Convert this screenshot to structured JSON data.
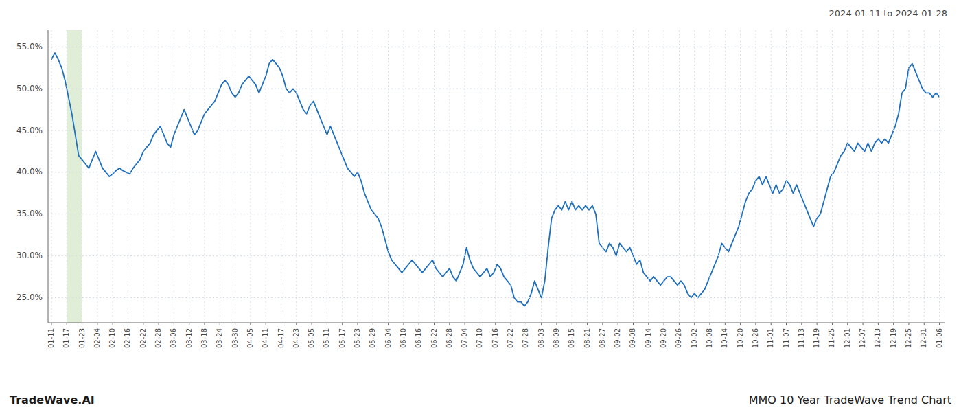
{
  "chart_data": {
    "type": "line",
    "title": "MMO 10 Year TradeWave Trend Chart",
    "subtitle": "2024-01-11 to 2024-01-28",
    "annotations": [
      "TradeWave.AI"
    ],
    "color": "#1f6fbf",
    "grid": true,
    "highlight": {
      "from": 4.5,
      "to": 9,
      "color": "#e0eed8"
    },
    "xlim": [
      -1,
      262.5
    ],
    "ylim": [
      22,
      57
    ],
    "yticks": [
      {
        "value": 25.0,
        "label": "25.0%"
      },
      {
        "value": 30.0,
        "label": "30.0%"
      },
      {
        "value": 35.0,
        "label": "35.0%"
      },
      {
        "value": 40.0,
        "label": "40.0%"
      },
      {
        "value": 45.0,
        "label": "45.0%"
      },
      {
        "value": 50.0,
        "label": "50.0%"
      },
      {
        "value": 55.0,
        "label": "55.0%"
      }
    ],
    "xticks": [
      {
        "value": 0,
        "label": "01-11"
      },
      {
        "value": 4.5,
        "label": "01-17"
      },
      {
        "value": 9,
        "label": "01-23"
      },
      {
        "value": 13.5,
        "label": "02-04"
      },
      {
        "value": 18,
        "label": "02-10"
      },
      {
        "value": 22.5,
        "label": "02-16"
      },
      {
        "value": 27,
        "label": "02-22"
      },
      {
        "value": 31.5,
        "label": "02-28"
      },
      {
        "value": 36,
        "label": "03-06"
      },
      {
        "value": 40.5,
        "label": "03-12"
      },
      {
        "value": 45,
        "label": "03-18"
      },
      {
        "value": 49.5,
        "label": "03-24"
      },
      {
        "value": 54,
        "label": "03-30"
      },
      {
        "value": 58.5,
        "label": "04-05"
      },
      {
        "value": 63,
        "label": "04-11"
      },
      {
        "value": 67.5,
        "label": "04-17"
      },
      {
        "value": 72,
        "label": "04-23"
      },
      {
        "value": 76.5,
        "label": "05-05"
      },
      {
        "value": 81,
        "label": "05-11"
      },
      {
        "value": 85.5,
        "label": "05-17"
      },
      {
        "value": 90,
        "label": "05-23"
      },
      {
        "value": 94.5,
        "label": "05-29"
      },
      {
        "value": 99,
        "label": "06-04"
      },
      {
        "value": 103.5,
        "label": "06-10"
      },
      {
        "value": 108,
        "label": "06-16"
      },
      {
        "value": 112.5,
        "label": "06-22"
      },
      {
        "value": 117,
        "label": "06-28"
      },
      {
        "value": 121.5,
        "label": "07-04"
      },
      {
        "value": 126,
        "label": "07-10"
      },
      {
        "value": 130.5,
        "label": "07-16"
      },
      {
        "value": 135,
        "label": "07-22"
      },
      {
        "value": 139.5,
        "label": "07-28"
      },
      {
        "value": 144,
        "label": "08-03"
      },
      {
        "value": 148.5,
        "label": "08-09"
      },
      {
        "value": 153,
        "label": "08-15"
      },
      {
        "value": 157.5,
        "label": "08-21"
      },
      {
        "value": 162,
        "label": "08-27"
      },
      {
        "value": 166.5,
        "label": "09-02"
      },
      {
        "value": 171,
        "label": "09-08"
      },
      {
        "value": 175.5,
        "label": "09-14"
      },
      {
        "value": 180,
        "label": "09-20"
      },
      {
        "value": 184.5,
        "label": "09-26"
      },
      {
        "value": 189,
        "label": "10-02"
      },
      {
        "value": 193.5,
        "label": "10-08"
      },
      {
        "value": 198,
        "label": "10-14"
      },
      {
        "value": 202.5,
        "label": "10-20"
      },
      {
        "value": 207,
        "label": "10-26"
      },
      {
        "value": 211.5,
        "label": "11-01"
      },
      {
        "value": 216,
        "label": "11-07"
      },
      {
        "value": 220.5,
        "label": "11-13"
      },
      {
        "value": 225,
        "label": "11-19"
      },
      {
        "value": 229.5,
        "label": "11-25"
      },
      {
        "value": 234,
        "label": "12-01"
      },
      {
        "value": 238.5,
        "label": "12-07"
      },
      {
        "value": 243,
        "label": "12-13"
      },
      {
        "value": 247.5,
        "label": "12-19"
      },
      {
        "value": 252,
        "label": "12-25"
      },
      {
        "value": 256.5,
        "label": "12-31"
      },
      {
        "value": 261,
        "label": "01-06"
      }
    ],
    "x": [
      0,
      1,
      2,
      3,
      4,
      5,
      6,
      7,
      8,
      9,
      10,
      11,
      12,
      13,
      14,
      15,
      16,
      17,
      18,
      19,
      20,
      21,
      22,
      23,
      24,
      25,
      26,
      27,
      28,
      29,
      30,
      31,
      32,
      33,
      34,
      35,
      36,
      37,
      38,
      39,
      40,
      41,
      42,
      43,
      44,
      45,
      46,
      47,
      48,
      49,
      50,
      51,
      52,
      53,
      54,
      55,
      56,
      57,
      58,
      59,
      60,
      61,
      62,
      63,
      64,
      65,
      66,
      67,
      68,
      69,
      70,
      71,
      72,
      73,
      74,
      75,
      76,
      77,
      78,
      79,
      80,
      81,
      82,
      83,
      84,
      85,
      86,
      87,
      88,
      89,
      90,
      91,
      92,
      93,
      94,
      95,
      96,
      97,
      98,
      99,
      100,
      101,
      102,
      103,
      104,
      105,
      106,
      107,
      108,
      109,
      110,
      111,
      112,
      113,
      114,
      115,
      116,
      117,
      118,
      119,
      120,
      121,
      122,
      123,
      124,
      125,
      126,
      127,
      128,
      129,
      130,
      131,
      132,
      133,
      134,
      135,
      136,
      137,
      138,
      139,
      140,
      141,
      142,
      143,
      144,
      145,
      146,
      147,
      148,
      149,
      150,
      151,
      152,
      153,
      154,
      155,
      156,
      157,
      158,
      159,
      160,
      161,
      162,
      163,
      164,
      165,
      166,
      167,
      168,
      169,
      170,
      171,
      172,
      173,
      174,
      175,
      176,
      177,
      178,
      179,
      180,
      181,
      182,
      183,
      184,
      185,
      186,
      187,
      188,
      189,
      190,
      191,
      192,
      193,
      194,
      195,
      196,
      197,
      198,
      199,
      200,
      201,
      202,
      203,
      204,
      205,
      206,
      207,
      208,
      209,
      210,
      211,
      212,
      213,
      214,
      215,
      216,
      217,
      218,
      219,
      220,
      221,
      222,
      223,
      224,
      225,
      226,
      227,
      228,
      229,
      230,
      231,
      232,
      233,
      234,
      235,
      236,
      237,
      238,
      239,
      240,
      241,
      242,
      243,
      244,
      245,
      246,
      247,
      248,
      249,
      250,
      251,
      252,
      253,
      254,
      255,
      256,
      257,
      258,
      259,
      260,
      261
    ],
    "values": [
      53.5,
      54.3,
      53.5,
      52.5,
      51.0,
      49.0,
      47.0,
      44.5,
      42.0,
      41.5,
      41.0,
      40.5,
      41.5,
      42.5,
      41.5,
      40.5,
      40.0,
      39.5,
      39.8,
      40.2,
      40.5,
      40.2,
      40.0,
      39.8,
      40.5,
      41.0,
      41.5,
      42.5,
      43.0,
      43.5,
      44.5,
      45.0,
      45.5,
      44.5,
      43.5,
      43.0,
      44.5,
      45.5,
      46.5,
      47.5,
      46.5,
      45.5,
      44.5,
      45.0,
      46.0,
      47.0,
      47.5,
      48.0,
      48.5,
      49.5,
      50.5,
      51.0,
      50.5,
      49.5,
      49.0,
      49.5,
      50.5,
      51.0,
      51.5,
      51.0,
      50.5,
      49.5,
      50.5,
      51.5,
      53.0,
      53.5,
      53.0,
      52.5,
      51.5,
      50.0,
      49.5,
      50.0,
      49.5,
      48.5,
      47.5,
      47.0,
      48.0,
      48.5,
      47.5,
      46.5,
      45.5,
      44.5,
      45.5,
      44.5,
      43.5,
      42.5,
      41.5,
      40.5,
      40.0,
      39.5,
      40.0,
      39.0,
      37.5,
      36.5,
      35.5,
      35.0,
      34.5,
      33.5,
      32.0,
      30.5,
      29.5,
      29.0,
      28.5,
      28.0,
      28.5,
      29.0,
      29.5,
      29.0,
      28.5,
      28.0,
      28.5,
      29.0,
      29.5,
      28.5,
      28.0,
      27.5,
      28.0,
      28.5,
      27.5,
      27.0,
      28.0,
      29.0,
      31.0,
      29.5,
      28.5,
      28.0,
      27.5,
      28.0,
      28.5,
      27.5,
      28.0,
      29.0,
      28.5,
      27.5,
      27.0,
      26.5,
      25.0,
      24.5,
      24.5,
      24.0,
      24.5,
      25.5,
      27.0,
      26.0,
      25.0,
      27.0,
      31.0,
      34.5,
      35.5,
      36.0,
      35.5,
      36.5,
      35.5,
      36.5,
      35.5,
      36.0,
      35.5,
      36.0,
      35.5,
      36.0,
      35.0,
      31.5,
      31.0,
      30.5,
      31.5,
      31.0,
      30.0,
      31.5,
      31.0,
      30.5,
      31.0,
      30.0,
      29.0,
      29.5,
      28.0,
      27.5,
      27.0,
      27.5,
      27.0,
      26.5,
      27.0,
      27.5,
      27.5,
      27.0,
      26.5,
      27.0,
      26.5,
      25.5,
      25.0,
      25.5,
      25.0,
      25.5,
      26.0,
      27.0,
      28.0,
      29.0,
      30.0,
      31.5,
      31.0,
      30.5,
      31.5,
      32.5,
      33.5,
      35.0,
      36.5,
      37.5,
      38.0,
      39.0,
      39.5,
      38.5,
      39.5,
      38.5,
      37.5,
      38.5,
      37.5,
      38.0,
      39.0,
      38.5,
      37.5,
      38.5,
      37.5,
      36.5,
      35.5,
      34.5,
      33.5,
      34.5,
      35.0,
      36.5,
      38.0,
      39.5,
      40.0,
      41.0,
      42.0,
      42.5,
      43.5,
      43.0,
      42.5,
      43.5,
      43.0,
      42.5,
      43.5,
      42.5,
      43.5,
      44.0,
      43.5,
      44.0,
      43.5,
      44.5,
      45.5,
      47.0,
      49.5,
      50.0,
      52.5,
      53.0,
      52.0,
      51.0,
      50.0,
      49.5,
      49.5,
      49.0,
      49.5,
      49.0
    ]
  }
}
